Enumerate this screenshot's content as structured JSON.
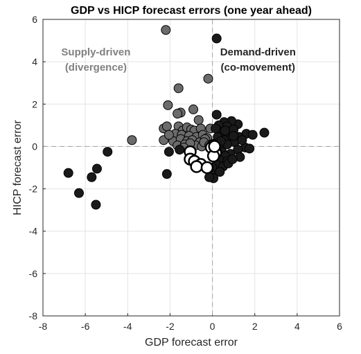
{
  "chart_data": {
    "type": "scatter",
    "title": "GDP vs HICP forecast errors (one year ahead)",
    "xlabel": "GDP forecast error",
    "ylabel": "HICP forecast error",
    "xlim": [
      -8,
      6
    ],
    "ylim": [
      -8,
      6
    ],
    "xticks": [
      -8,
      -6,
      -4,
      -2,
      0,
      2,
      4,
      6
    ],
    "yticks": [
      -8,
      -6,
      -4,
      -2,
      0,
      2,
      4,
      6
    ],
    "grid": true,
    "reference_lines": {
      "x": 0,
      "y": 0,
      "style": "dashed"
    },
    "annotations": [
      {
        "lines": [
          "Supply-driven",
          "(divergence)"
        ],
        "color": "#808080",
        "position": "upper-left quadrant"
      },
      {
        "lines": [
          "Demand-driven",
          "(co-movement)"
        ],
        "color": "#262626",
        "position": "upper-right quadrant"
      }
    ],
    "series": [
      {
        "color": "#6b6b6b",
        "points": [
          [
            -2.2,
            5.5
          ],
          [
            -0.2,
            3.2
          ],
          [
            -1.6,
            2.75
          ],
          [
            -2.1,
            1.95
          ],
          [
            -1.5,
            1.6
          ],
          [
            -1.65,
            1.55
          ],
          [
            -0.9,
            1.75
          ],
          [
            -0.65,
            1.25
          ],
          [
            -2.3,
            0.85
          ],
          [
            -2.15,
            0.95
          ],
          [
            -1.6,
            0.95
          ],
          [
            -1.4,
            0.75
          ],
          [
            -1.2,
            0.9
          ],
          [
            -1.0,
            0.8
          ],
          [
            -0.85,
            0.75
          ],
          [
            -0.55,
            0.85
          ],
          [
            -0.1,
            0.85
          ],
          [
            -1.75,
            0.6
          ],
          [
            -1.45,
            0.55
          ],
          [
            -1.1,
            0.5
          ],
          [
            -0.75,
            0.45
          ],
          [
            -0.45,
            0.55
          ],
          [
            -0.25,
            0.4
          ],
          [
            -2.3,
            0.3
          ],
          [
            -1.85,
            0.25
          ],
          [
            -1.5,
            0.35
          ],
          [
            -1.2,
            0.25
          ],
          [
            -0.95,
            0.3
          ],
          [
            -0.6,
            0.2
          ],
          [
            -0.35,
            0.35
          ],
          [
            -1.65,
            0.05
          ],
          [
            -1.3,
            0.1
          ],
          [
            -0.8,
            0.05
          ],
          [
            -0.5,
            0.0
          ],
          [
            -3.8,
            0.3
          ],
          [
            -2.05,
            0.55
          ],
          [
            -1.05,
            0.15
          ],
          [
            -0.4,
            0.2
          ],
          [
            -0.15,
            0.05
          ],
          [
            -1.35,
            -0.05
          ]
        ]
      },
      {
        "color": "#1a1a1a",
        "points": [
          [
            0.2,
            5.1
          ],
          [
            -6.8,
            -1.25
          ],
          [
            -6.3,
            -2.2
          ],
          [
            -5.5,
            -2.75
          ],
          [
            -5.7,
            -1.45
          ],
          [
            -5.45,
            -1.05
          ],
          [
            -4.95,
            -0.25
          ],
          [
            -2.15,
            -1.3
          ],
          [
            -2.05,
            -0.25
          ],
          [
            -1.55,
            -0.15
          ],
          [
            0.2,
            1.5
          ],
          [
            1.2,
            1.05
          ],
          [
            0.9,
            1.2
          ],
          [
            0.55,
            1.15
          ],
          [
            0.3,
            1.0
          ],
          [
            0.7,
            0.95
          ],
          [
            1.0,
            0.8
          ],
          [
            1.6,
            0.6
          ],
          [
            2.45,
            0.65
          ],
          [
            1.9,
            0.55
          ],
          [
            0.35,
            0.7
          ],
          [
            0.6,
            0.6
          ],
          [
            1.25,
            0.45
          ],
          [
            0.85,
            0.35
          ],
          [
            0.25,
            0.45
          ],
          [
            0.55,
            0.3
          ],
          [
            1.05,
            0.2
          ],
          [
            0.45,
            0.05
          ],
          [
            0.7,
            0.1
          ],
          [
            1.55,
            -0.05
          ],
          [
            1.2,
            -0.15
          ],
          [
            0.15,
            -0.1
          ],
          [
            0.45,
            -0.25
          ],
          [
            0.85,
            -0.35
          ],
          [
            0.6,
            -0.45
          ],
          [
            1.3,
            -0.5
          ],
          [
            0.3,
            -0.6
          ],
          [
            0.7,
            -0.7
          ],
          [
            0.2,
            -0.85
          ],
          [
            0.0,
            -1.0
          ],
          [
            -0.05,
            -1.3
          ],
          [
            0.05,
            -1.5
          ],
          [
            0.5,
            -0.95
          ],
          [
            0.35,
            -1.2
          ],
          [
            0.75,
            -0.8
          ],
          [
            -0.15,
            -1.45
          ],
          [
            1.0,
            0.5
          ],
          [
            1.4,
            0.3
          ],
          [
            0.95,
            -0.6
          ],
          [
            0.4,
            0.25
          ],
          [
            1.75,
            -0.1
          ],
          [
            -0.2,
            -0.95
          ],
          [
            0.15,
            0.85
          ],
          [
            0.6,
            0.75
          ]
        ]
      },
      {
        "color": "#ffffff",
        "points": [
          [
            -1.05,
            -0.25
          ],
          [
            -1.05,
            -0.6
          ],
          [
            -0.85,
            -0.7
          ],
          [
            -0.55,
            -0.85
          ],
          [
            -0.75,
            -0.95
          ],
          [
            -0.25,
            -1.0
          ],
          [
            0.05,
            0.05
          ],
          [
            -0.05,
            -0.05
          ],
          [
            0.15,
            -0.3
          ],
          [
            0.05,
            -0.45
          ],
          [
            0.1,
            0.0
          ]
        ]
      }
    ]
  }
}
